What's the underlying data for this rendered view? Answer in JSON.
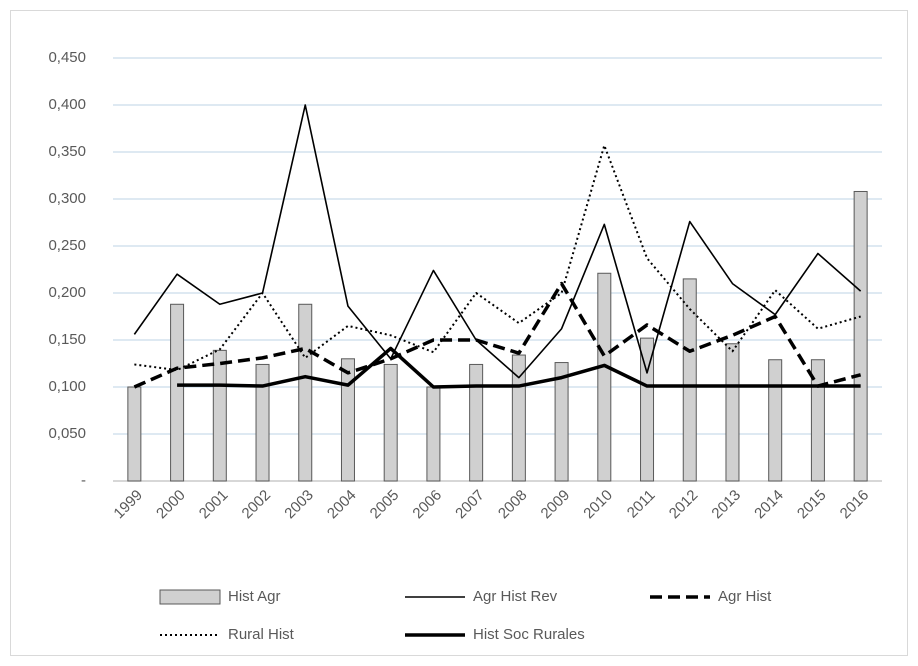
{
  "chart_data": {
    "type": "combo",
    "categories": [
      "1999",
      "2000",
      "2001",
      "2002",
      "2003",
      "2004",
      "2005",
      "2006",
      "2007",
      "2008",
      "2009",
      "2010",
      "2011",
      "2012",
      "2013",
      "2014",
      "2015",
      "2016"
    ],
    "series": [
      {
        "name": "Hist Agr",
        "type": "bar",
        "color": "#d0d0d0",
        "values": [
          0.1,
          0.188,
          0.139,
          0.124,
          0.188,
          0.13,
          0.124,
          0.1,
          0.124,
          0.134,
          0.126,
          0.221,
          0.152,
          0.215,
          0.146,
          0.129,
          0.129,
          0.308
        ]
      },
      {
        "name": "Agr Hist Rev",
        "type": "line",
        "color": "#000000",
        "line_style": "solid",
        "line_width": 1.6,
        "values": [
          0.156,
          0.22,
          0.188,
          0.2,
          0.4,
          0.186,
          0.13,
          0.224,
          0.15,
          0.11,
          0.162,
          0.273,
          0.115,
          0.276,
          0.21,
          0.177,
          0.242,
          0.202
        ]
      },
      {
        "name": "Agr Hist",
        "type": "line",
        "color": "#000000",
        "line_style": "dashed",
        "line_width": 3.5,
        "values": [
          0.1,
          0.12,
          0.125,
          0.131,
          0.141,
          0.115,
          0.13,
          0.15,
          0.15,
          0.136,
          0.21,
          0.133,
          0.166,
          0.138,
          0.155,
          0.175,
          0.101,
          0.113
        ]
      },
      {
        "name": "Rural Hist",
        "type": "line",
        "color": "#000000",
        "line_style": "dotted",
        "line_width": 2,
        "values": [
          0.124,
          0.118,
          0.14,
          0.2,
          0.131,
          0.165,
          0.155,
          0.137,
          0.2,
          0.168,
          0.2,
          0.357,
          0.237,
          0.183,
          0.138,
          0.203,
          0.162,
          0.175
        ]
      },
      {
        "name": "Hist Soc Rurales",
        "type": "line",
        "color": "#000000",
        "line_style": "solid",
        "line_width": 3.5,
        "values": [
          null,
          0.102,
          0.102,
          0.101,
          0.111,
          0.102,
          0.141,
          0.1,
          0.101,
          0.101,
          0.11,
          0.123,
          0.101,
          0.101,
          0.101,
          0.101,
          0.101,
          0.101
        ]
      }
    ],
    "ylim": [
      0,
      0.45
    ],
    "yticks": [
      {
        "value": 0,
        "label": "-"
      },
      {
        "value": 0.05,
        "label": "0,050"
      },
      {
        "value": 0.1,
        "label": "0,100"
      },
      {
        "value": 0.15,
        "label": "0,150"
      },
      {
        "value": 0.2,
        "label": "0,200"
      },
      {
        "value": 0.25,
        "label": "0,250"
      },
      {
        "value": 0.3,
        "label": "0,300"
      },
      {
        "value": 0.35,
        "label": "0,350"
      },
      {
        "value": 0.4,
        "label": "0,400"
      },
      {
        "value": 0.45,
        "label": "0,450"
      }
    ],
    "grid": true,
    "legend": "bottom"
  }
}
